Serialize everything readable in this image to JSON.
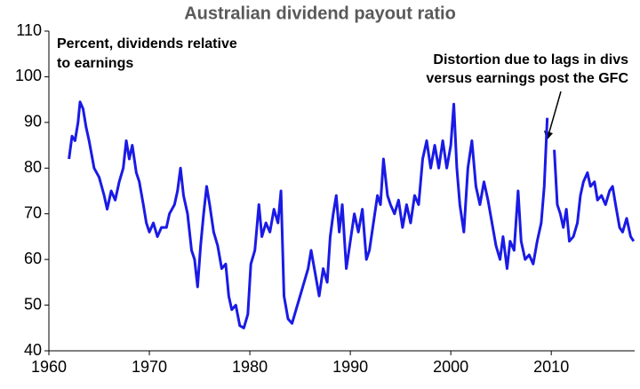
{
  "chart_data": {
    "type": "line",
    "title": "Australian dividend payout ratio",
    "subtitle": [
      "Percent, dividends relative",
      "to earnings"
    ],
    "annotations": [
      {
        "text": [
          "Distortion due to lags in divs",
          "versus earnings post the GFC"
        ]
      }
    ],
    "xlim": [
      1960,
      2018.3
    ],
    "xticks": [
      1960,
      1970,
      1980,
      1990,
      2000,
      2010
    ],
    "ylim": [
      40,
      110
    ],
    "yticks": [
      40,
      50,
      60,
      70,
      80,
      90,
      100,
      110
    ],
    "x": [
      1962.0,
      1962.3,
      1962.6,
      1962.9,
      1963.1,
      1963.4,
      1963.7,
      1964.0,
      1964.5,
      1965.0,
      1965.5,
      1965.8,
      1966.2,
      1966.6,
      1967.0,
      1967.4,
      1967.7,
      1968.0,
      1968.3,
      1968.7,
      1969.0,
      1969.4,
      1969.7,
      1970.0,
      1970.4,
      1970.8,
      1971.2,
      1971.7,
      1972.0,
      1972.5,
      1972.8,
      1973.1,
      1973.4,
      1973.8,
      1974.2,
      1974.5,
      1974.8,
      1975.1,
      1975.4,
      1975.7,
      1976.0,
      1976.4,
      1976.8,
      1977.2,
      1977.6,
      1977.9,
      1978.2,
      1978.6,
      1979.0,
      1979.4,
      1979.8,
      1980.1,
      1980.5,
      1980.9,
      1981.2,
      1981.6,
      1982.0,
      1982.4,
      1982.8,
      1983.1,
      1983.4,
      1983.8,
      1984.2,
      1984.6,
      1985.0,
      1985.4,
      1985.8,
      1986.1,
      1986.5,
      1986.9,
      1987.3,
      1987.7,
      1988.0,
      1988.3,
      1988.6,
      1988.9,
      1989.2,
      1989.6,
      1990.0,
      1990.4,
      1990.8,
      1991.2,
      1991.6,
      1991.9,
      1992.3,
      1992.7,
      1993.0,
      1993.3,
      1993.7,
      1994.0,
      1994.4,
      1994.8,
      1995.2,
      1995.6,
      1996.0,
      1996.4,
      1996.8,
      1997.2,
      1997.6,
      1998.0,
      1998.4,
      1998.8,
      1999.2,
      1999.6,
      2000.0,
      2000.3,
      2000.6,
      2000.9,
      2001.3,
      2001.7,
      2002.1,
      2002.5,
      2002.9,
      2003.3,
      2003.7,
      2004.1,
      2004.5,
      2004.9,
      2005.2,
      2005.6,
      2005.9,
      2006.3,
      2006.7,
      2007.0,
      2007.4,
      2007.8,
      2008.2,
      2008.6,
      2009.0,
      2009.3,
      2009.6,
      2009.8,
      2010.3,
      2010.6,
      2010.9,
      2011.2,
      2011.5,
      2011.8,
      2012.2,
      2012.6,
      2012.9,
      2013.2,
      2013.6,
      2013.9,
      2014.3,
      2014.6,
      2015.0,
      2015.4,
      2015.8,
      2016.1,
      2016.4,
      2016.8,
      2017.1,
      2017.5,
      2017.9,
      2018.2
    ],
    "series": [
      {
        "name": "Dividend payout ratio",
        "color": "#1a1ae6",
        "values": [
          82,
          87,
          86,
          90,
          94.5,
          93,
          89,
          86,
          80,
          78,
          74,
          71,
          75,
          73,
          77,
          80,
          86,
          82,
          85,
          79,
          77,
          72,
          68,
          66,
          68,
          65,
          67,
          67,
          70,
          72,
          75,
          80,
          74,
          70,
          62,
          60,
          54,
          63,
          70,
          76,
          72,
          66,
          63,
          58,
          59,
          52,
          49,
          50,
          45.5,
          45,
          48,
          59,
          62,
          72,
          65,
          68,
          66,
          71,
          68,
          75,
          52,
          47,
          46,
          49,
          52,
          55,
          58,
          62,
          57,
          52,
          58,
          55,
          65,
          70,
          74,
          66,
          72,
          58,
          64,
          70,
          66,
          71,
          60,
          62,
          68,
          74,
          72,
          82,
          74,
          72,
          70,
          73,
          67,
          72,
          68,
          74,
          72,
          82,
          86,
          80,
          85,
          80,
          86,
          80,
          85,
          94,
          80,
          72,
          66,
          80,
          86,
          76,
          72,
          77,
          73,
          68,
          63,
          60,
          65,
          58,
          64,
          62,
          75,
          64,
          60,
          61,
          59,
          64,
          68,
          76,
          91,
          null,
          84,
          72,
          70,
          67,
          71,
          64,
          65,
          68,
          74,
          77,
          79,
          76,
          77,
          73,
          74,
          72,
          75,
          76,
          72,
          67,
          66,
          69,
          65,
          64
        ]
      }
    ]
  }
}
